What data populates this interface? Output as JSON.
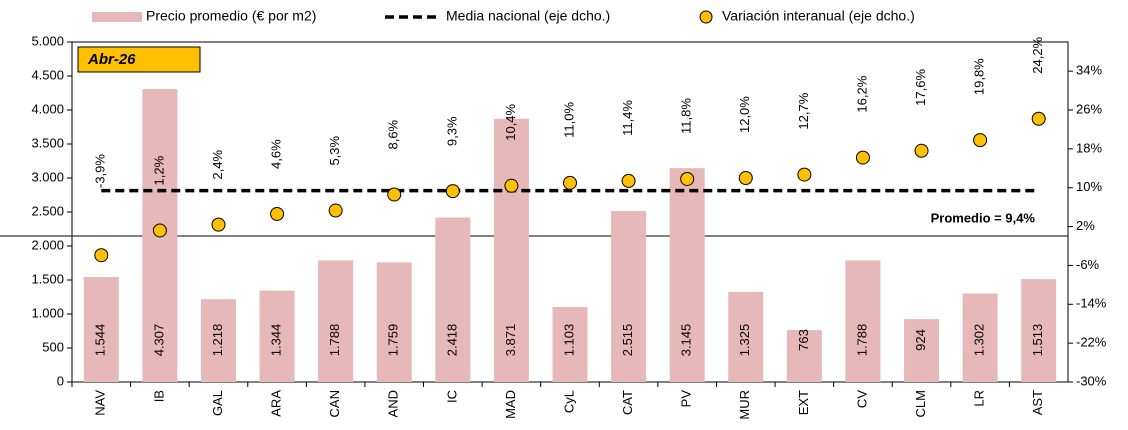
{
  "chart_data": {
    "type": "bar",
    "categories": [
      "NAV",
      "IB",
      "GAL",
      "ARA",
      "CAN",
      "AND",
      "IC",
      "MAD",
      "CyL",
      "CAT",
      "PV",
      "MUR",
      "EXT",
      "CV",
      "CLM",
      "LR",
      "AST"
    ],
    "series": [
      {
        "name": "Precio promedio (€ por m2)",
        "type": "bar",
        "color": "#e6b8b7",
        "values": [
          1544,
          4307,
          1218,
          1344,
          1788,
          1759,
          2418,
          3871,
          1103,
          2515,
          3145,
          1325,
          763,
          1788,
          924,
          1302,
          1513
        ],
        "value_labels": [
          "1.544",
          "4.307",
          "1.218",
          "1.344",
          "1.788",
          "1.759",
          "2.418",
          "3.871",
          "1.103",
          "2.515",
          "3.145",
          "1.325",
          "763",
          "1.788",
          "924",
          "1.302",
          "1.513"
        ]
      },
      {
        "name": "Media nacional (eje dcho.)",
        "type": "line",
        "axis": "y2",
        "color": "#000000",
        "values": [
          9.4,
          9.4,
          9.4,
          9.4,
          9.4,
          9.4,
          9.4,
          9.4,
          9.4,
          9.4,
          9.4,
          9.4,
          9.4,
          9.4,
          9.4,
          9.4,
          9.4
        ]
      },
      {
        "name": "Variación interanual (eje dcho.)",
        "type": "scatter",
        "axis": "y2",
        "color": "#ffc000",
        "values": [
          -3.9,
          1.2,
          2.4,
          4.6,
          5.3,
          8.6,
          9.3,
          10.4,
          11.0,
          11.4,
          11.8,
          12.0,
          12.7,
          16.2,
          17.6,
          19.8,
          24.2
        ],
        "value_labels": [
          "-3,9%",
          "1,2%",
          "2,4%",
          "4,6%",
          "5,3%",
          "8,6%",
          "9,3%",
          "10,4%",
          "11,0%",
          "11,4%",
          "11,8%",
          "12,0%",
          "12,7%",
          "16,2%",
          "17,6%",
          "19,8%",
          "24,2%"
        ]
      }
    ],
    "ylim": [
      0,
      5000
    ],
    "yticks": [
      0,
      500,
      {
        "value": 1000,
        "label": "1.000"
      },
      {
        "value": 1500,
        "label": "1.500"
      },
      {
        "value": 2000,
        "label": "2.000"
      },
      {
        "value": 2500,
        "label": "2.500"
      },
      {
        "value": 3000,
        "label": "3.000"
      },
      {
        "value": 3500,
        "label": "3.500"
      },
      {
        "value": 4000,
        "label": "4.000"
      },
      {
        "value": 4500,
        "label": "4.500"
      },
      {
        "value": 5000,
        "label": "5.000"
      }
    ],
    "y2lim": [
      -30,
      40
    ],
    "y2ticks": [
      {
        "value": -30,
        "label": "-30%"
      },
      {
        "value": -22,
        "label": "-22%"
      },
      {
        "value": -14,
        "label": "-14%"
      },
      {
        "value": -6,
        "label": "-6%"
      },
      {
        "value": 2,
        "label": "2%"
      },
      {
        "value": 10,
        "label": "10%"
      },
      {
        "value": 18,
        "label": "18%"
      },
      {
        "value": 26,
        "label": "26%"
      },
      {
        "value": 34,
        "label": "34%"
      }
    ],
    "annotations": [
      "Abr-26",
      "Promedio = 9,4%"
    ],
    "legend": "top"
  }
}
